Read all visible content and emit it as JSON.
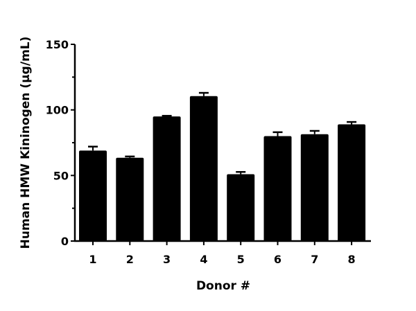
{
  "chart_data": {
    "type": "bar",
    "title": "",
    "xlabel": "Donor #",
    "ylabel": "Human HMW Kininogen (μg/mL)",
    "categories": [
      "1",
      "2",
      "3",
      "4",
      "5",
      "6",
      "7",
      "8"
    ],
    "values": [
      69,
      63.5,
      95,
      110.5,
      51,
      80,
      81.5,
      89
    ],
    "error_upper": [
      72,
      64.5,
      95.5,
      113,
      52.7,
      83,
      84,
      90.8
    ],
    "ylim": [
      0,
      150
    ],
    "yticks": [
      "0",
      "50",
      "100",
      "150"
    ],
    "grid": false,
    "bar_color": "#000000"
  }
}
